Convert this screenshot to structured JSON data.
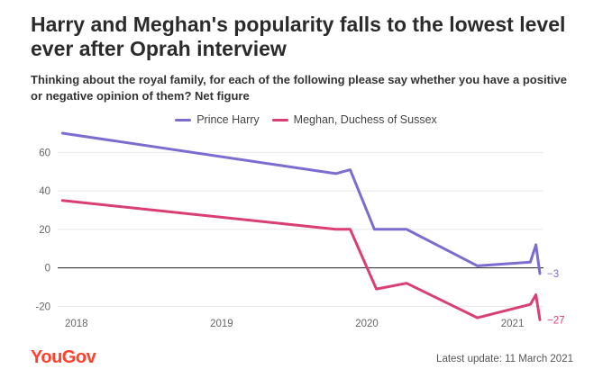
{
  "title": "Harry and Meghan's popularity falls to the lowest level ever after Oprah interview",
  "subtitle": "Thinking about the royal family, for each of the following please say whether you have a positive or negative opinion of them? Net figure",
  "brand": "YouGov",
  "footer_note": "Latest update: 11 March 2021",
  "colors": {
    "harry": "#7c6ccf",
    "meghan": "#d93e74",
    "grid": "#e8e8e8",
    "zero_line": "#222222",
    "axis_text": "#666666",
    "brand": "#ff412c"
  },
  "chart_data": {
    "type": "line",
    "title": "",
    "xlabel": "",
    "ylabel": "",
    "x_type": "time",
    "xlim": [
      "2017-11-15",
      "2021-03-20"
    ],
    "ylim": [
      -25,
      70
    ],
    "yticks": [
      -20,
      0,
      20,
      40,
      60
    ],
    "xticks": [
      {
        "label": "2018",
        "date": "2018-01-01"
      },
      {
        "label": "2019",
        "date": "2019-01-01"
      },
      {
        "label": "2020",
        "date": "2020-01-01"
      },
      {
        "label": "2021",
        "date": "2021-01-01"
      }
    ],
    "grid": true,
    "legend_position": "top-center",
    "series": [
      {
        "name": "Prince Harry",
        "color": "#7c6ccf",
        "end_label": "−3",
        "points": [
          {
            "x": "2017-11-27",
            "y": 70
          },
          {
            "x": "2019-10-15",
            "y": 49
          },
          {
            "x": "2019-11-20",
            "y": 51
          },
          {
            "x": "2020-01-20",
            "y": 20
          },
          {
            "x": "2020-04-10",
            "y": 20
          },
          {
            "x": "2020-10-05",
            "y": 1
          },
          {
            "x": "2021-02-15",
            "y": 3
          },
          {
            "x": "2021-03-01",
            "y": 12
          },
          {
            "x": "2021-03-11",
            "y": -3
          }
        ]
      },
      {
        "name": "Meghan, Duchess of Sussex",
        "color": "#d93e74",
        "end_label": "−27",
        "points": [
          {
            "x": "2017-11-27",
            "y": 35
          },
          {
            "x": "2019-10-15",
            "y": 20
          },
          {
            "x": "2019-11-20",
            "y": 20
          },
          {
            "x": "2020-01-25",
            "y": -11
          },
          {
            "x": "2020-04-10",
            "y": -8
          },
          {
            "x": "2020-10-05",
            "y": -26
          },
          {
            "x": "2021-02-15",
            "y": -19
          },
          {
            "x": "2021-03-01",
            "y": -14
          },
          {
            "x": "2021-03-11",
            "y": -27
          }
        ]
      }
    ]
  }
}
